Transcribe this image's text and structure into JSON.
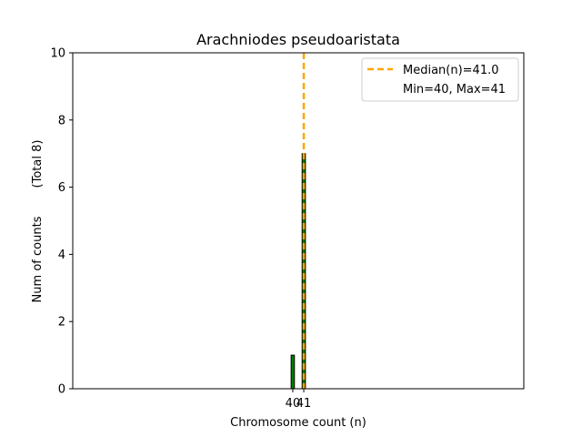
{
  "chart_data": {
    "type": "bar",
    "title": "Arachniodes pseudoaristata",
    "xlabel": "Chromosome count (n)",
    "ylabel": "Num of counts",
    "ylabel_total": "(Total 8)",
    "x": [
      40,
      41
    ],
    "values": [
      1,
      7
    ],
    "xticks": [
      "40",
      "41"
    ],
    "ylim": [
      0,
      10
    ],
    "xlim": [
      20,
      61
    ],
    "yticks": [
      0,
      2,
      4,
      6,
      8,
      10
    ],
    "grid": false,
    "median": 41.0,
    "legend": {
      "placement": "top-right",
      "entries": [
        "Median(n)=41.0",
        "Min=40, Max=41"
      ]
    },
    "colors": {
      "bar_fill": "#008000",
      "bar_edge": "#000000",
      "median_line": "#ffa500"
    }
  }
}
